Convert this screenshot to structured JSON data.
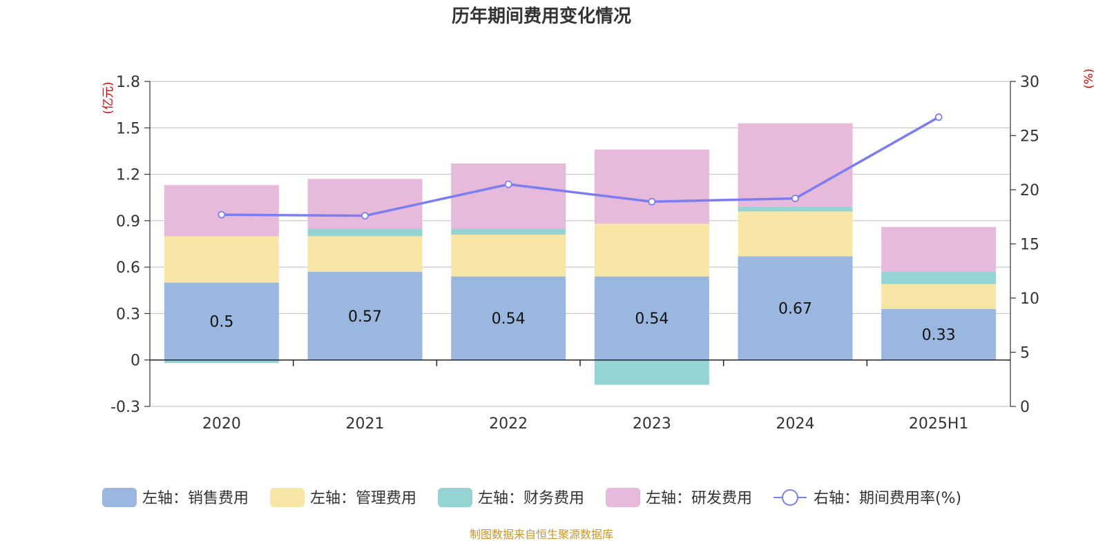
{
  "chart_data": {
    "type": "bar",
    "stacked": true,
    "title": "历年期间费用变化情况",
    "categories": [
      "2020",
      "2021",
      "2022",
      "2023",
      "2024",
      "2025H1"
    ],
    "left_axis": {
      "unit": "(亿元)",
      "ylim": [
        -0.3,
        1.8
      ],
      "ticks": [
        "1.8",
        "1.5",
        "1.2",
        "0.9",
        "0.6",
        "0.3",
        "0",
        "-0.3"
      ],
      "tick_values": [
        1.8,
        1.5,
        1.2,
        0.9,
        0.6,
        0.3,
        0,
        -0.3
      ]
    },
    "right_axis": {
      "unit": "(%)",
      "ylim": [
        0,
        30
      ],
      "ticks": [
        "30",
        "25",
        "20",
        "15",
        "10",
        "5",
        "0"
      ],
      "tick_values": [
        30,
        25,
        20,
        15,
        10,
        5,
        0
      ]
    },
    "series": [
      {
        "name": "左轴：销售费用",
        "color": "#9ab7e0",
        "values": [
          0.5,
          0.57,
          0.54,
          0.54,
          0.67,
          0.33
        ],
        "labels": [
          "0.5",
          "0.57",
          "0.54",
          "0.54",
          "0.67",
          "0.33"
        ]
      },
      {
        "name": "左轴：管理费用",
        "color": "#f7e6a6",
        "values": [
          0.3,
          0.23,
          0.27,
          0.34,
          0.29,
          0.16
        ]
      },
      {
        "name": "左轴：财务费用",
        "color": "#96d3d3",
        "values": [
          -0.02,
          0.05,
          0.04,
          -0.16,
          0.03,
          0.08
        ]
      },
      {
        "name": "左轴：研发费用",
        "color": "#e7b9da",
        "values": [
          0.33,
          0.32,
          0.42,
          0.48,
          0.54,
          0.29
        ]
      }
    ],
    "line_series": {
      "name": "右轴：期间费用率(%)",
      "color": "#7a7ef0",
      "axis": "right",
      "values": [
        17.7,
        17.6,
        20.5,
        18.9,
        19.2,
        26.7
      ]
    },
    "grid": true,
    "legend_position": "bottom"
  },
  "source_text": "制图数据来自恒生聚源数据库"
}
